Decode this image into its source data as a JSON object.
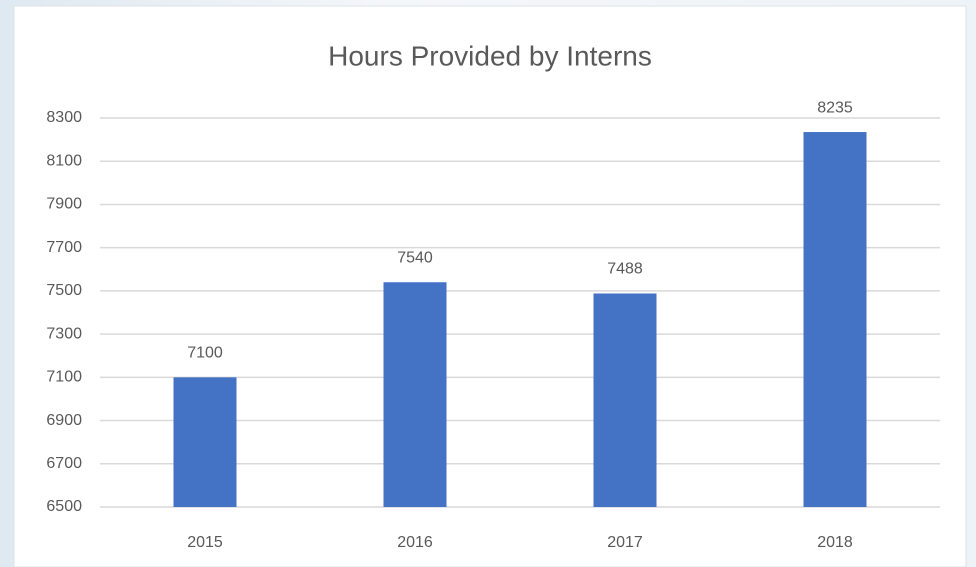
{
  "chart_data": {
    "type": "bar",
    "title": "Hours Provided by Interns",
    "categories": [
      "2015",
      "2016",
      "2017",
      "2018"
    ],
    "values": [
      7100,
      7540,
      7488,
      8235
    ],
    "color": "#4472c4",
    "ylim": [
      6500,
      8300
    ],
    "yticks": [
      6500,
      6700,
      6900,
      7100,
      7300,
      7500,
      7700,
      7900,
      8100,
      8300
    ],
    "grid": true
  }
}
